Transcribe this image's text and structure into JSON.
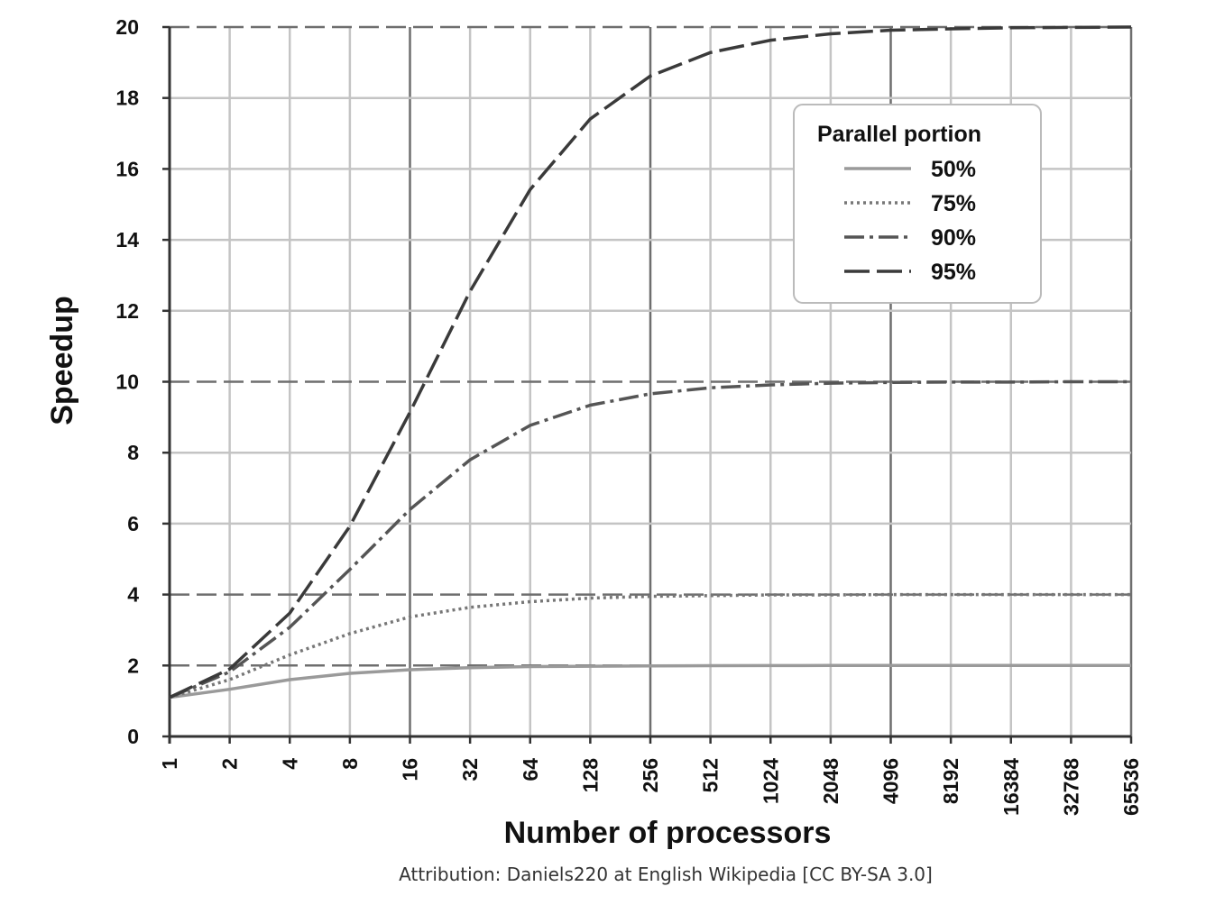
{
  "chart_data": {
    "type": "line",
    "xlabel": "Number of processors",
    "ylabel": "Speedup",
    "x_scale": "log2",
    "categories": [
      1,
      2,
      4,
      8,
      16,
      32,
      64,
      128,
      256,
      512,
      1024,
      2048,
      4096,
      8192,
      16384,
      32768,
      65536
    ],
    "y_ticks": [
      0,
      2,
      4,
      6,
      8,
      10,
      12,
      14,
      16,
      18,
      20
    ],
    "ylim": [
      0,
      20
    ],
    "grid": true,
    "legend": {
      "title": "Parallel portion",
      "placement": "top-right"
    },
    "series": [
      {
        "name": "50%",
        "style": "solid",
        "color": "#9a9a9a",
        "values": [
          1.1,
          1.33,
          1.6,
          1.78,
          1.88,
          1.94,
          1.97,
          1.98,
          1.99,
          1.995,
          1.998,
          1.999,
          2.0,
          2.0,
          2.0,
          2.0,
          2.0
        ]
      },
      {
        "name": "75%",
        "style": "dotted",
        "color": "#777777",
        "values": [
          1.1,
          1.6,
          2.3,
          2.9,
          3.37,
          3.64,
          3.8,
          3.9,
          3.95,
          3.97,
          3.99,
          3.99,
          4.0,
          4.0,
          4.0,
          4.0,
          4.0
        ]
      },
      {
        "name": "90%",
        "style": "dashdot",
        "color": "#555555",
        "values": [
          1.1,
          1.82,
          3.08,
          4.71,
          6.4,
          7.8,
          8.77,
          9.34,
          9.66,
          9.83,
          9.91,
          9.96,
          9.98,
          9.99,
          9.99,
          10.0,
          10.0
        ]
      },
      {
        "name": "95%",
        "style": "longdash",
        "color": "#3a3a3a",
        "values": [
          1.1,
          1.9,
          3.48,
          5.93,
          9.14,
          12.55,
          15.42,
          17.41,
          18.62,
          19.28,
          19.63,
          19.81,
          19.91,
          19.95,
          19.98,
          19.99,
          20.0
        ]
      }
    ]
  },
  "attribution": "Attribution: Daniels220 at English Wikipedia [CC BY-SA 3.0]"
}
